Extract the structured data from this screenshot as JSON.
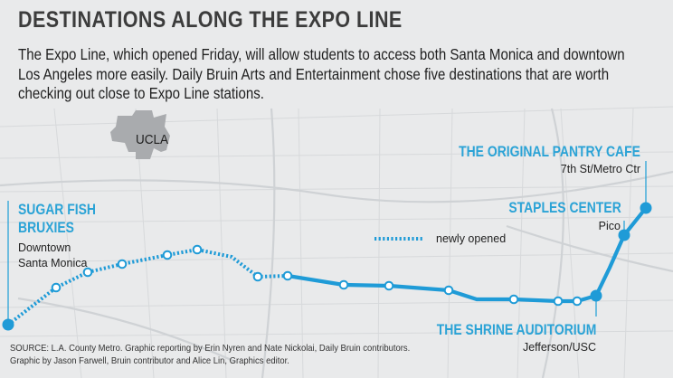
{
  "title": "DESTINATIONS ALONG THE EXPO LINE",
  "intro": "The Expo Line, which opened Friday, will allow students to access both Santa Monica and downtown Los Angeles more easily. Daily Bruin Arts and Entertainment chose five destinations that are worth checking out close to Expo Line stations.",
  "ucla_label": "UCLA",
  "legend_label": "newly opened",
  "destinations": {
    "santa_monica": {
      "line1": "SUGAR FISH",
      "line2": "BRUXIES",
      "station_line1": "Downtown",
      "station_line2": "Santa Monica"
    },
    "pantry": {
      "name": "THE ORIGINAL PANTRY CAFE",
      "station": "7th St/Metro Ctr"
    },
    "staples": {
      "name": "STAPLES CENTER",
      "station": "Pico"
    },
    "shrine": {
      "name": "THE SHRINE AUDITORIUM",
      "station": "Jefferson/USC"
    }
  },
  "source_line1": "SOURCE: L.A. County Metro. Graphic reporting by Erin Nyren and Nate Nickolai, Daily Bruin contributors.",
  "source_line2": "Graphic by Jason Farwell, Bruin contributor and Alice Lin, Graphics editor.",
  "colors": {
    "line": "#1f9bd7",
    "accent_text": "#2ba3d6",
    "ucla_shape": "#a9abae",
    "background": "#e9eaeb",
    "roads": "#d6d8da"
  }
}
